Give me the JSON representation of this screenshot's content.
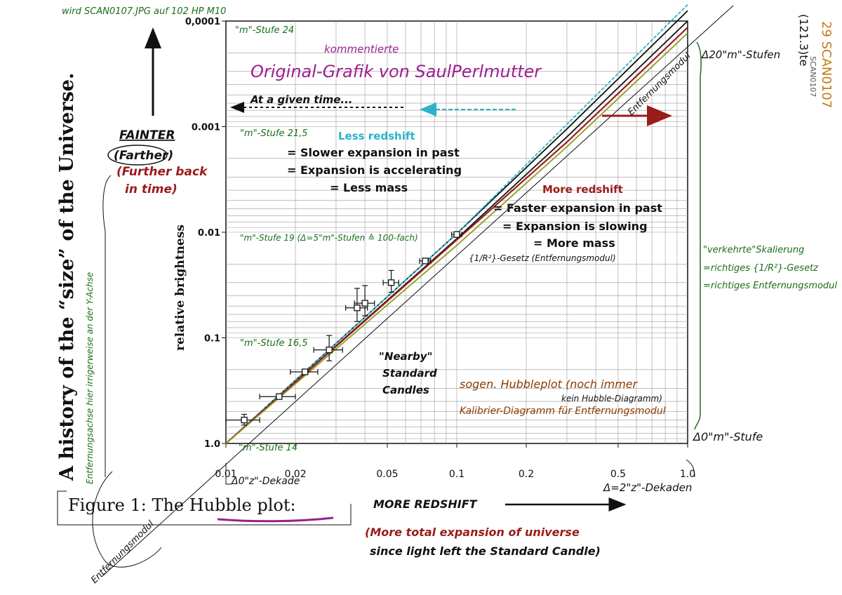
{
  "colors": {
    "ink": "#111111",
    "green": "#1a6e1a",
    "magenta": "#9c1f8e",
    "darkred": "#9b1b1b",
    "cyan": "#2ab3c8",
    "brown": "#8a3b00",
    "olive": "#8f9a1e",
    "orange": "#b5651d",
    "grid": "#9a9a9a"
  },
  "header": {
    "scan_note": "wird SCAN0107.JPG auf 102 HP M10",
    "corner_right": "SCAN0107",
    "corner_right2": "29 SCAN0107",
    "corner_ref": "(121.3)te"
  },
  "side": {
    "vertical_title": "A history of the “size” of the Universe.",
    "fainter": "FAINTER",
    "farther": "(Farther)",
    "further1": "(Further back",
    "further2": "in time)",
    "vertical_note": "Entfernungsachse hier irrigerweise an der Y-Achse",
    "entf_modul_left": "Entfernungsmodul"
  },
  "chart_data": {
    "type": "line",
    "title": "",
    "xlabel": "",
    "ylabel": "relative brightness",
    "x_scale": "log",
    "y_scale": "log, reversed",
    "xlim": [
      0.01,
      1.0
    ],
    "ylim": [
      1.0,
      0.0001
    ],
    "x_ticks": [
      {
        "value": 0.01,
        "label": "0.01"
      },
      {
        "value": 0.02,
        "label": "0.02"
      },
      {
        "value": 0.05,
        "label": "0.05"
      },
      {
        "value": 0.1,
        "label": "0.1"
      },
      {
        "value": 0.2,
        "label": "0.2"
      },
      {
        "value": 0.5,
        "label": "0.5"
      },
      {
        "value": 1.0,
        "label": "1.0"
      }
    ],
    "y_ticks": [
      {
        "value": 1.0,
        "label": "1.0"
      },
      {
        "value": 0.1,
        "label": "0.1"
      },
      {
        "value": 0.01,
        "label": "0.01"
      },
      {
        "value": 0.001,
        "label": "0.001"
      },
      {
        "value": 0.0001,
        "label": "0,0001"
      }
    ],
    "grid": true,
    "series": [
      {
        "role": "black-upper",
        "color": "#111111",
        "x": [
          0.01,
          0.1,
          0.3,
          1.0
        ],
        "y": [
          1.0,
          0.0115,
          0.00125,
          0.0001
        ]
      },
      {
        "role": "black-lower",
        "color": "#111111",
        "x": [
          0.01,
          0.1,
          0.3,
          1.0
        ],
        "y": [
          1.0,
          0.0103,
          0.00105,
          8e-05
        ]
      },
      {
        "role": "less-redshift",
        "color": "#2ab3c8",
        "x": [
          0.01,
          0.1,
          0.3,
          1.0
        ],
        "y": [
          1.0,
          0.0103,
          0.00095,
          7e-05
        ]
      },
      {
        "role": "more-redshift",
        "color": "#9b1b1b",
        "x": [
          0.01,
          0.1,
          0.3,
          1.0
        ],
        "y": [
          1.0,
          0.0118,
          0.0014,
          0.000115
        ]
      },
      {
        "role": "entfernungsmodul",
        "color": "#8f9a1e",
        "x": [
          0.01,
          0.1,
          0.3,
          1.0
        ],
        "y": [
          1.0,
          0.0133,
          0.00155,
          0.00013
        ]
      }
    ],
    "points": [
      {
        "x": 0.012,
        "y": 0.6,
        "xerr": 0.002,
        "yerr": 0.07
      },
      {
        "x": 0.017,
        "y": 0.36,
        "xerr": 0.003
      },
      {
        "x": 0.022,
        "y": 0.21,
        "xerr": 0.003
      },
      {
        "x": 0.028,
        "y": 0.13,
        "xerr": 0.004,
        "yerr": 0.035
      },
      {
        "x": 0.037,
        "y": 0.052,
        "xerr": 0.004,
        "yerr": 0.018
      },
      {
        "x": 0.04,
        "y": 0.047,
        "xerr": 0.004,
        "yerr": 0.015
      },
      {
        "x": 0.052,
        "y": 0.03,
        "xerr": 0.004,
        "yerr": 0.007
      },
      {
        "x": 0.073,
        "y": 0.0187,
        "xerr": 0.004
      },
      {
        "x": 0.1,
        "y": 0.0105,
        "xerr": 0.005
      }
    ],
    "annotations": {
      "kommentierte": "kommentierte",
      "original": "Original-Grafik von SaulPerlmutter",
      "at_given_time": "At a given time...",
      "less_redshift": "Less redshift",
      "slower": "= Slower expansion in past",
      "accelerating": "= Expansion is accelerating",
      "less_mass": "= Less mass",
      "more_redshift": "More redshift",
      "faster": "= Faster expansion in past",
      "slowing": "= Expansion is slowing",
      "more_mass": "= More mass",
      "gesetz": "{1/R²}-Gesetz (Entfernungsmodul)",
      "m24": "\"m\"-Stufe 24",
      "m215": "\"m\"-Stufe 21,5",
      "m19": "\"m\"-Stufe 19 (Δ=5\"m\"-Stufen ≙ 100-fach)",
      "m165": "\"m\"-Stufe 16,5",
      "m14": "\"m\"-Stufe 14",
      "nearby1": "\"Nearby\"",
      "nearby2": "Standard",
      "nearby3": "Candles",
      "sogen": "sogen. Hubbleplot (noch immer",
      "kein": "kein Hubble-Diagramm)",
      "kalibrier": "Kalibrier-Diagramm für Entfernungsmodul",
      "delta20": "Δ20\"m\"-Stufen",
      "delta0m": "Δ0\"m\"-Stufe",
      "delta0z": "Δ0\"z\"-Dekade",
      "delta2z": "Δ=2\"z\"-Dekaden",
      "entf_modul_line": "Entfernungsmodul",
      "verkehrte": "\"verkehrte\"Skalierung",
      "richtiges1": "=richtiges {1/R²}-Gesetz",
      "richtiges2": "=richtiges Entfernungsmodul"
    }
  },
  "caption": {
    "figure": "Figure 1: ",
    "hubble": "The Hubble plot:",
    "more_redshift": "MORE REDSHIFT",
    "expansion1": "(More total expansion  of universe",
    "expansion2": "since light left the Standard Candle)",
    "entf_bottom": "Entfernungsmodul"
  }
}
